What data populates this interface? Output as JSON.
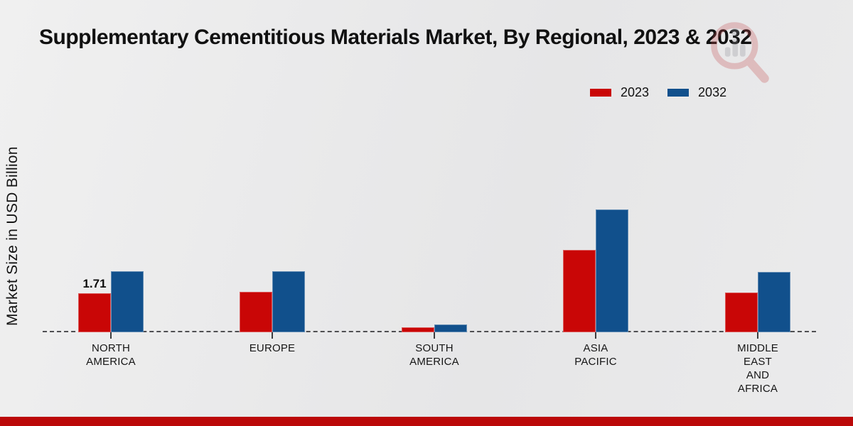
{
  "title": "Supplementary Cementitious Materials Market, By Regional, 2023 & 2032",
  "y_axis_label": "Market Size in USD Billion",
  "legend": [
    {
      "label": "2023",
      "color": "#c90606"
    },
    {
      "label": "2032",
      "color": "#11508c"
    }
  ],
  "colors": {
    "series_2023": "#c90606",
    "series_2032": "#11508c",
    "footer_accent": "#bb0808",
    "baseline": "#4f4f52",
    "background": "#e9e9ea"
  },
  "watermark": "market-research-logo",
  "chart_data": {
    "type": "bar",
    "title": "Supplementary Cementitious Materials Market, By Regional, 2023 & 2032",
    "ylabel": "Market Size in USD Billion",
    "xlabel": "",
    "grid": false,
    "legend_position": "top-right",
    "baseline_style": "dashed",
    "categories": [
      "NORTH AMERICA",
      "EUROPE",
      "SOUTH AMERICA",
      "ASIA PACIFIC",
      "MIDDLE EAST AND AFRICA"
    ],
    "category_lines": [
      [
        "NORTH",
        "AMERICA"
      ],
      [
        "EUROPE"
      ],
      [
        "SOUTH",
        "AMERICA"
      ],
      [
        "ASIA",
        "PACIFIC"
      ],
      [
        "MIDDLE",
        "EAST",
        "AND",
        "AFRICA"
      ]
    ],
    "series": [
      {
        "name": "2023",
        "color": "#c90606",
        "values": [
          1.71,
          1.77,
          0.22,
          3.61,
          1.74
        ]
      },
      {
        "name": "2032",
        "color": "#11508c",
        "values": [
          2.67,
          2.67,
          0.34,
          5.38,
          2.64
        ]
      }
    ],
    "annotations": [
      {
        "series": "2023",
        "category_index": 0,
        "text": "1.71"
      }
    ],
    "ylim": [
      0,
      6
    ]
  }
}
